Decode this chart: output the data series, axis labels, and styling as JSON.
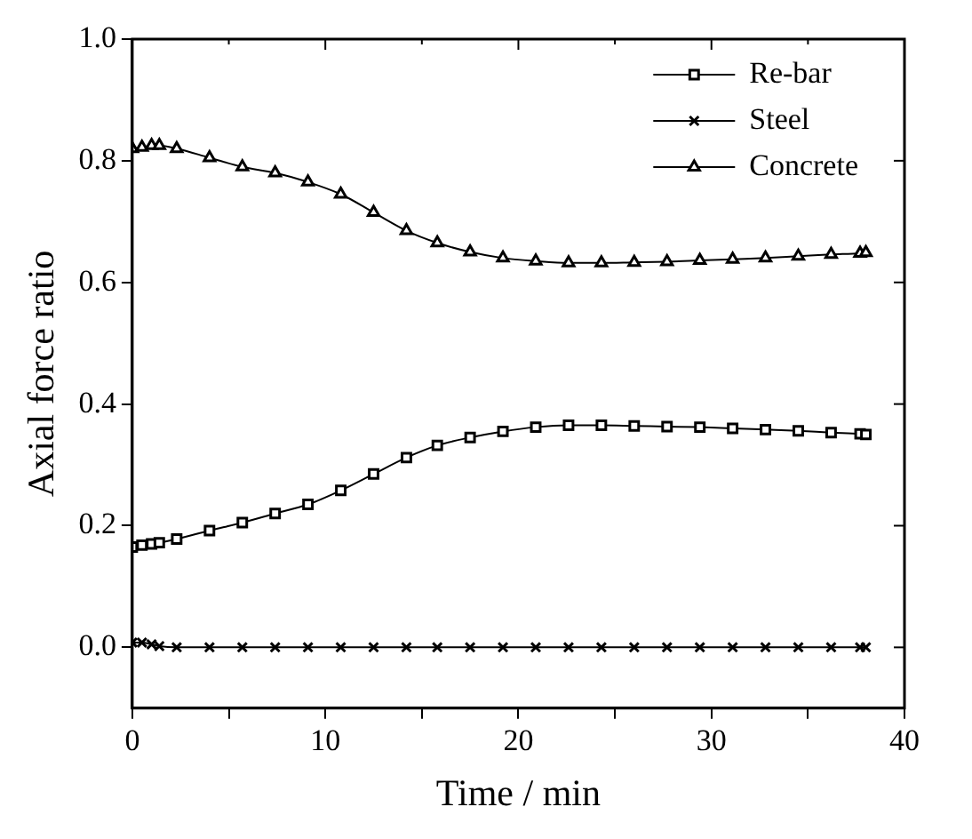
{
  "chart_data": {
    "type": "line",
    "xlabel": "Time / min",
    "ylabel": "Axial force ratio",
    "xlim": [
      0,
      40
    ],
    "xticks": [
      0,
      {
        "value": 5,
        "label": null
      },
      10,
      {
        "value": 15,
        "label": null
      },
      20,
      {
        "value": 25,
        "label": null
      },
      30,
      {
        "value": 35,
        "label": null
      },
      40
    ],
    "ylim": [
      -0.1,
      1.0
    ],
    "yticks": [
      "0.0",
      0.2,
      0.4,
      0.6,
      0.8,
      "1.0"
    ],
    "grid": false,
    "legend": "top right",
    "line_style": "solid",
    "series": [
      {
        "name": "Re-bar",
        "color": "#000000",
        "marker": "square",
        "x": [
          0,
          0.5,
          1,
          1.4,
          2.3,
          4,
          5.7,
          7.4,
          9.1,
          10.8,
          12.5,
          14.2,
          15.8,
          17.5,
          19.2,
          20.9,
          22.6,
          24.3,
          26,
          27.7,
          29.4,
          31.1,
          32.8,
          34.5,
          36.2,
          37.7,
          38
        ],
        "values": [
          0.165,
          0.168,
          0.17,
          0.172,
          0.178,
          0.192,
          0.205,
          0.22,
          0.235,
          0.258,
          0.285,
          0.312,
          0.332,
          0.345,
          0.355,
          0.362,
          0.365,
          0.365,
          0.364,
          0.363,
          0.362,
          0.36,
          0.358,
          0.356,
          0.353,
          0.351,
          0.35
        ]
      },
      {
        "name": "Steel",
        "color": "#000000",
        "marker": "cross",
        "x": [
          0,
          0.5,
          1,
          1.4,
          2.3,
          4,
          5.7,
          7.4,
          9.1,
          10.8,
          12.5,
          14.2,
          15.8,
          17.5,
          19.2,
          20.9,
          22.6,
          24.3,
          26,
          27.7,
          29.4,
          31.1,
          32.8,
          34.5,
          36.2,
          37.7,
          38
        ],
        "values": [
          0.008,
          0.008,
          0.005,
          0.002,
          0,
          0,
          0,
          0,
          0,
          0,
          0,
          0,
          0,
          0,
          0,
          0,
          0,
          0,
          0,
          0,
          0,
          0,
          0,
          0,
          0,
          0,
          0
        ]
      },
      {
        "name": "Concrete",
        "color": "#000000",
        "marker": "triangle",
        "x": [
          0,
          0.5,
          1,
          1.4,
          2.3,
          4,
          5.7,
          7.4,
          9.1,
          10.8,
          12.5,
          14.2,
          15.8,
          17.5,
          19.2,
          20.9,
          22.6,
          24.3,
          26,
          27.7,
          29.4,
          31.1,
          32.8,
          34.5,
          36.2,
          37.7,
          38
        ],
        "values": [
          0.82,
          0.822,
          0.825,
          0.825,
          0.82,
          0.805,
          0.79,
          0.78,
          0.765,
          0.745,
          0.715,
          0.685,
          0.665,
          0.65,
          0.64,
          0.635,
          0.632,
          0.632,
          0.633,
          0.634,
          0.636,
          0.638,
          0.64,
          0.643,
          0.646,
          0.648,
          0.649
        ]
      }
    ]
  }
}
